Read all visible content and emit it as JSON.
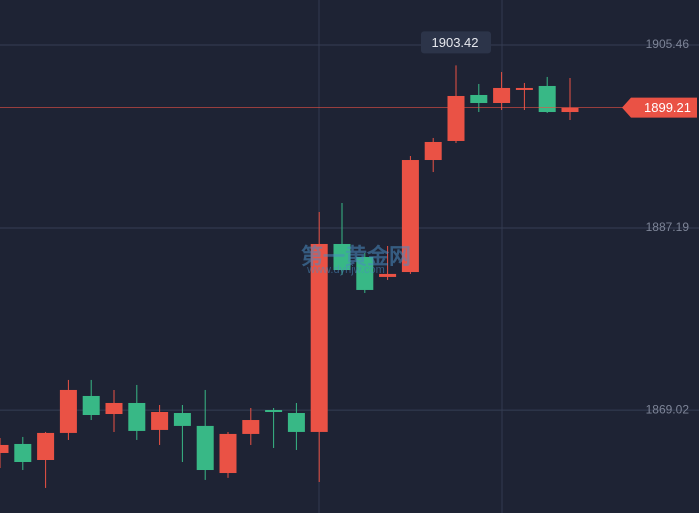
{
  "chart_data": {
    "type": "candlestick",
    "watermark": "第一黄金网",
    "watermark_sub": "www.dyhjw.com",
    "up_color": "#ea5245",
    "down_color": "#38b886",
    "open": [
      1864.74,
      1865.64,
      1864.04,
      1866.74,
      1870.43,
      1868.63,
      1869.73,
      1867.04,
      1868.73,
      1867.44,
      1862.74,
      1866.64,
      1869.03,
      1868.73,
      1866.84,
      1885.6,
      1884.3,
      1882.31,
      1882.8,
      1893.98,
      1895.88,
      1900.47,
      1899.67,
      1900.97,
      1901.37,
      1898.77
    ],
    "high": [
      1866.24,
      1866.34,
      1866.84,
      1872.03,
      1872.03,
      1871.03,
      1871.53,
      1869.53,
      1869.53,
      1871.03,
      1866.84,
      1869.23,
      1869.23,
      1869.73,
      1888.79,
      1889.69,
      1884.7,
      1885.4,
      1894.38,
      1896.18,
      1903.42,
      1901.57,
      1902.76,
      1901.67,
      1902.27,
      1902.17
    ],
    "low": [
      1863.24,
      1863.04,
      1861.25,
      1866.04,
      1868.03,
      1866.84,
      1866.04,
      1865.54,
      1863.84,
      1862.05,
      1862.25,
      1865.54,
      1865.24,
      1865.04,
      1861.85,
      1882.51,
      1880.71,
      1882.01,
      1882.61,
      1892.78,
      1895.68,
      1898.77,
      1898.97,
      1898.97,
      1898.67,
      1897.97
    ],
    "close": [
      1865.54,
      1863.84,
      1866.74,
      1871.03,
      1868.53,
      1869.73,
      1866.94,
      1868.83,
      1867.44,
      1863.04,
      1866.64,
      1868.03,
      1868.83,
      1866.84,
      1885.6,
      1883.0,
      1881.01,
      1882.61,
      1893.98,
      1895.78,
      1900.37,
      1899.67,
      1901.17,
      1901.17,
      1898.77,
      1899.21
    ],
    "ylim": [
      1858.75,
      1909.95
    ],
    "yticks": [
      1869.02,
      1887.19,
      1905.46
    ],
    "grid": true
  }
}
